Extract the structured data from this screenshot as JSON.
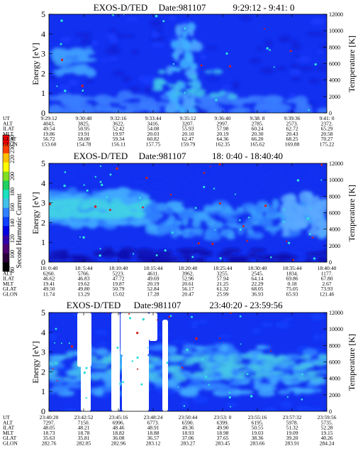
{
  "colors": {
    "background": "#ffffff",
    "plot_bg": "#1230f0",
    "colorbar": [
      "#000000",
      "#2a003a",
      "#4b0070",
      "#3000a8",
      "#0000e0",
      "#1040ff",
      "#2f80ff",
      "#3fc0e8",
      "#18e0c0",
      "#20d060",
      "#80e020",
      "#ffff00",
      "#ffc000",
      "#ff4000",
      "#ff0000"
    ]
  },
  "colorbar": {
    "label": "Second Harmonic Current",
    "ticks": [
      "240",
      "230",
      "220",
      "200",
      "180",
      "160",
      "140",
      "120",
      "100",
      "80"
    ]
  },
  "chart_data": [
    {
      "type": "heatmap",
      "title": "EXOS-D/TED",
      "date_label": "Date:981107",
      "time_label": "9:29:12 - 9:41: 0",
      "ylabel": "Energy [eV]",
      "y2label": "Temperature [K]",
      "ylim": [
        0,
        5
      ],
      "y2lim": [
        0,
        12000
      ],
      "yticks": [
        "0",
        "1",
        "2",
        "3",
        "4",
        "5"
      ],
      "y2ticks": [
        "0",
        "2000",
        "4000",
        "6000",
        "8000",
        "10000",
        "12000"
      ],
      "row_labels": [
        "UT",
        "ALT",
        "ILAT",
        "MLT",
        "GLAT",
        "GLON"
      ],
      "columns": [
        [
          "9:29:12",
          "4043.",
          "49.54",
          "19.86",
          "56.72",
          "153.60"
        ],
        [
          "9:30:48",
          "3825.",
          "50.95",
          "19.91",
          "58.00",
          "154.78"
        ],
        [
          "9:32:16",
          "3622.",
          "52.42",
          "19.97",
          "59.34",
          "156.11"
        ],
        [
          "9:33:44",
          "3416.",
          "54.08",
          "20.03",
          "60.82",
          "157.75"
        ],
        [
          "9:35:12",
          "3207.",
          "55.93",
          "20.10",
          "62.47",
          "159.79"
        ],
        [
          "9:36:40",
          "2997.",
          "57.98",
          "20.19",
          "64.36",
          "162.35"
        ],
        [
          "9:38: 8",
          "2785.",
          "60.24",
          "20.30",
          "66.20",
          "165.62"
        ],
        [
          "9:39:36",
          "2573.",
          "62.72",
          "20.43",
          "68.25",
          "169.88"
        ],
        [
          "9:41: 0",
          "2372.",
          "65.29",
          "20.58",
          "70.27",
          "175.22"
        ]
      ]
    },
    {
      "type": "heatmap",
      "title": "EXOS-D/TED",
      "date_label": "Date:981107",
      "time_label": "18: 0:40 - 18:40:40",
      "ylabel": "Energy [eV]",
      "y2label": "Temperature [K]",
      "ylim": [
        0,
        5
      ],
      "y2lim": [
        0,
        12000
      ],
      "yticks": [
        "0",
        "1",
        "2",
        "3",
        "4",
        "5"
      ],
      "y2ticks": [
        "0",
        "2000",
        "4000",
        "6000",
        "8000",
        "10000",
        "12000"
      ],
      "row_labels": [
        "UT",
        "ALT",
        "ILAT",
        "MLT",
        "GLAT",
        "GLON"
      ],
      "columns": [
        [
          "18: 0:40",
          "6260.",
          "46.62",
          "19.41",
          "49.50",
          "11.74"
        ],
        [
          "18: 5:44",
          "5766.",
          "46.83",
          "19.62",
          "49.80",
          "13.29"
        ],
        [
          "18:10:40",
          "5223.",
          "47.72",
          "19.87",
          "50.79",
          "15.02"
        ],
        [
          "18:15:44",
          "4611.",
          "49.69",
          "20.19",
          "52.84",
          "17.28"
        ],
        [
          "18:20:40",
          "3962.",
          "52.96",
          "20.61",
          "56.17",
          "20.47"
        ],
        [
          "18:25:44",
          "3255.",
          "57.94",
          "21.25",
          "61.32",
          "25.99"
        ],
        [
          "18:30:40",
          "2545.",
          "64.14",
          "22.29",
          "68.05",
          "36.93"
        ],
        [
          "18:35:44",
          "1834.",
          "69.86",
          "0.18",
          "75.05",
          "65.93"
        ],
        [
          "18:40:40",
          "1177.",
          "67.80",
          "2.67",
          "73.93",
          "121.46"
        ]
      ]
    },
    {
      "type": "heatmap",
      "title": "EXOS-D/TED",
      "date_label": "Date:981107",
      "time_label": "23:40:20 - 23:59:56",
      "ylabel": "Energy [eV]",
      "y2label": "Temperature [K]",
      "ylim": [
        0,
        5
      ],
      "y2lim": [
        0,
        12000
      ],
      "yticks": [
        "0",
        "1",
        "2",
        "3",
        "4",
        "5"
      ],
      "y2ticks": [
        "0",
        "2000",
        "4000",
        "6000",
        "8000",
        "10000",
        "12000"
      ],
      "row_labels": [
        "UT",
        "ALT",
        "ILAT",
        "MLT",
        "GLAT",
        "GLON"
      ],
      "columns": [
        [
          "23:40:20",
          "7297.",
          "48.05",
          "18.73",
          "35.63",
          "282.76"
        ],
        [
          "23:42:52",
          "7150.",
          "48.21",
          "18.78",
          "35.81",
          "282.85"
        ],
        [
          "23:45:16",
          "6996.",
          "48.46",
          "18.82",
          "36.08",
          "282.96"
        ],
        [
          "23:48:24",
          "6773.",
          "48.91",
          "18.88",
          "36.57",
          "283.12"
        ],
        [
          "23:50:44",
          "6590.",
          "49.36",
          "18.93",
          "37.06",
          "283.27"
        ],
        [
          "23:53: 0",
          "6399.",
          "49.90",
          "18.98",
          "37.65",
          "283.45"
        ],
        [
          "23:55:16",
          "6195.",
          "50.55",
          "19.03",
          "38.36",
          "283.66"
        ],
        [
          "23:57:32",
          "5978.",
          "51.32",
          "19.09",
          "39.20",
          "283.91"
        ],
        [
          "23:59:56",
          "5735.",
          "52.28",
          "19.15",
          "40.26",
          "284.24"
        ]
      ]
    }
  ]
}
